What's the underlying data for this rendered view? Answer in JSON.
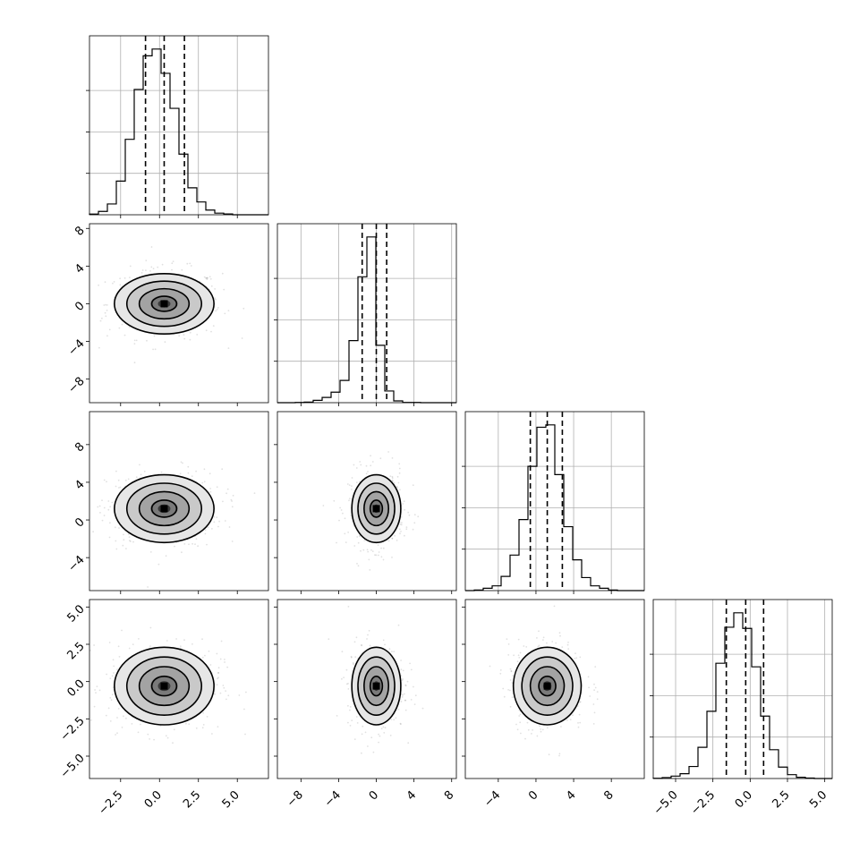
{
  "chart_data": {
    "type": "corner",
    "grid": true,
    "title": "",
    "variables": [
      {
        "xlim": [
          -4.5,
          7.0
        ],
        "ticks": [
          -2.5,
          0.0,
          2.5,
          5.0
        ],
        "ticklabels": [
          "−2.5",
          "0.0",
          "2.5",
          "5.0"
        ],
        "quantiles": [
          -0.9,
          0.3,
          1.6
        ],
        "hist": {
          "edges": [
            -4.5,
            -3.925,
            -3.35,
            -2.775,
            -2.2,
            -1.625,
            -1.05,
            -0.475,
            0.1,
            0.675,
            1.25,
            1.825,
            2.4,
            2.975,
            3.55,
            4.125,
            4.7,
            5.275,
            5.85,
            6.425,
            7.0
          ],
          "counts": [
            5,
            25,
            80,
            250,
            560,
            930,
            1180,
            1230,
            1050,
            790,
            450,
            200,
            95,
            35,
            12,
            6,
            0,
            0,
            0,
            0
          ]
        }
      },
      {
        "xlim": [
          -10.5,
          8.5
        ],
        "ylim": [
          -10.5,
          8.5
        ],
        "ticks": [
          -8,
          -4,
          0,
          4,
          8
        ],
        "ticklabels": [
          "−8",
          "−4",
          "0",
          "4",
          "8"
        ],
        "quantiles": [
          -1.5,
          0.0,
          1.1
        ],
        "hist": {
          "edges": [
            -10.5,
            -9.55,
            -8.6,
            -7.65,
            -6.7,
            -5.75,
            -4.8,
            -3.85,
            -2.9,
            -1.95,
            -1.0,
            -0.05,
            0.9,
            1.85,
            2.8,
            3.75,
            4.7,
            5.65,
            6.6,
            7.55,
            8.5
          ],
          "counts": [
            0,
            0,
            5,
            10,
            40,
            90,
            180,
            380,
            1060,
            2150,
            2830,
            980,
            200,
            30,
            5,
            5,
            0,
            0,
            0,
            0
          ]
        }
      },
      {
        "xlim": [
          -7.5,
          11.5
        ],
        "ylim": [
          -7.5,
          11.5
        ],
        "ticks": [
          -4,
          0,
          4,
          8
        ],
        "ticklabels": [
          "−4",
          "0",
          "4",
          "8"
        ],
        "quantiles": [
          -0.6,
          1.2,
          2.8
        ],
        "hist": {
          "edges": [
            -7.5,
            -6.55,
            -5.6,
            -4.65,
            -3.7,
            -2.75,
            -1.8,
            -0.85,
            0.1,
            1.05,
            2.0,
            2.95,
            3.9,
            4.85,
            5.8,
            6.75,
            7.7,
            8.65,
            9.6,
            10.55,
            11.5
          ],
          "counts": [
            0,
            5,
            20,
            40,
            120,
            300,
            600,
            1050,
            1380,
            1400,
            980,
            540,
            260,
            110,
            40,
            20,
            5,
            0,
            0,
            0
          ]
        }
      },
      {
        "xlim": [
          -6.5,
          5.5
        ],
        "ylim": [
          -6.5,
          5.5
        ],
        "ticks": [
          -5.0,
          -2.5,
          0.0,
          2.5,
          5.0
        ],
        "ticklabels": [
          "−5.0",
          "−2.5",
          "0.0",
          "2.5",
          "5.0"
        ],
        "quantiles": [
          -1.6,
          -0.3,
          0.9
        ],
        "hist": {
          "edges": [
            -6.5,
            -5.9,
            -5.3,
            -4.7,
            -4.1,
            -3.5,
            -2.9,
            -2.3,
            -1.7,
            -1.1,
            -0.5,
            0.1,
            0.7,
            1.3,
            1.9,
            2.5,
            3.1,
            3.7,
            4.3,
            4.9,
            5.5
          ],
          "counts": [
            2,
            8,
            20,
            40,
            100,
            260,
            560,
            960,
            1260,
            1380,
            1250,
            930,
            520,
            240,
            95,
            32,
            10,
            4,
            0,
            0
          ]
        }
      }
    ],
    "pairs": [
      {
        "row": 1,
        "col": 0,
        "center": [
          0.3,
          0.0
        ],
        "sx": 1.6,
        "sy": 1.6
      },
      {
        "row": 2,
        "col": 0,
        "center": [
          0.3,
          1.2
        ],
        "sx": 1.6,
        "sy": 1.8
      },
      {
        "row": 2,
        "col": 1,
        "center": [
          0.0,
          1.2
        ],
        "sx": 1.3,
        "sy": 1.8
      },
      {
        "row": 3,
        "col": 0,
        "center": [
          0.3,
          -0.3
        ],
        "sx": 1.6,
        "sy": 1.3
      },
      {
        "row": 3,
        "col": 1,
        "center": [
          0.0,
          -0.3
        ],
        "sx": 1.3,
        "sy": 1.3
      },
      {
        "row": 3,
        "col": 2,
        "center": [
          1.2,
          -0.3
        ],
        "sx": 1.8,
        "sy": 1.3
      }
    ]
  }
}
